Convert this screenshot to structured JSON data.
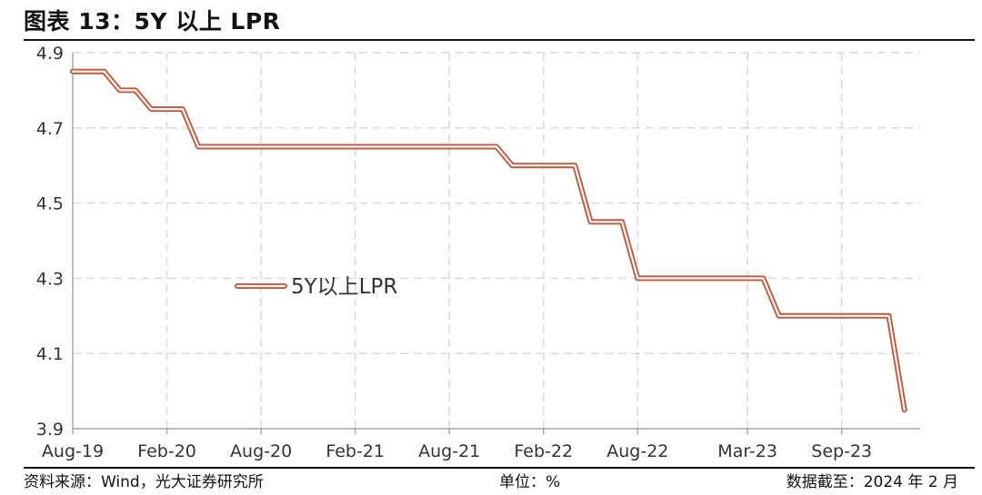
{
  "header": {
    "title": "图表 13：5Y 以上 LPR"
  },
  "footer": {
    "source": "资料来源：Wind，光大证券研究所",
    "unit": "单位：%",
    "date": "数据截至：2024 年 2 月"
  },
  "colors": {
    "series_outline": "#C8553A",
    "grid": "#D9D9D9",
    "axis": "#A6A6A6"
  },
  "chart_data": {
    "type": "line",
    "title": "",
    "xlabel": "",
    "ylabel": "",
    "ylim": [
      3.9,
      4.9
    ],
    "yticks": [
      4.9,
      4.7,
      4.5,
      4.3,
      4.1,
      3.9
    ],
    "ytick_labels": [
      "4.9",
      "4.7",
      "4.5",
      "4.3",
      "4.1",
      "3.9"
    ],
    "xlim": [
      "2019-08",
      "2024-02"
    ],
    "xticks": [
      "2019-08",
      "2020-02",
      "2020-08",
      "2021-02",
      "2021-08",
      "2022-02",
      "2022-08",
      "2023-03",
      "2023-09"
    ],
    "xtick_labels": [
      "Aug-19",
      "Feb-20",
      "Aug-20",
      "Feb-21",
      "Aug-21",
      "Feb-22",
      "Aug-22",
      "Mar-23",
      "Sep-23"
    ],
    "grid": true,
    "legend": {
      "position": "center-left"
    },
    "series": [
      {
        "name": "5Y以上LPR",
        "x": [
          "2019-08",
          "2019-10",
          "2019-11",
          "2019-12",
          "2020-01",
          "2020-03",
          "2020-04",
          "2021-11",
          "2021-12",
          "2022-04",
          "2022-05",
          "2022-07",
          "2022-08",
          "2023-04",
          "2023-05",
          "2023-12",
          "2024-01"
        ],
        "values": [
          4.85,
          4.85,
          4.8,
          4.8,
          4.75,
          4.75,
          4.65,
          4.65,
          4.6,
          4.6,
          4.45,
          4.45,
          4.3,
          4.3,
          4.2,
          4.2,
          3.95
        ]
      }
    ]
  }
}
